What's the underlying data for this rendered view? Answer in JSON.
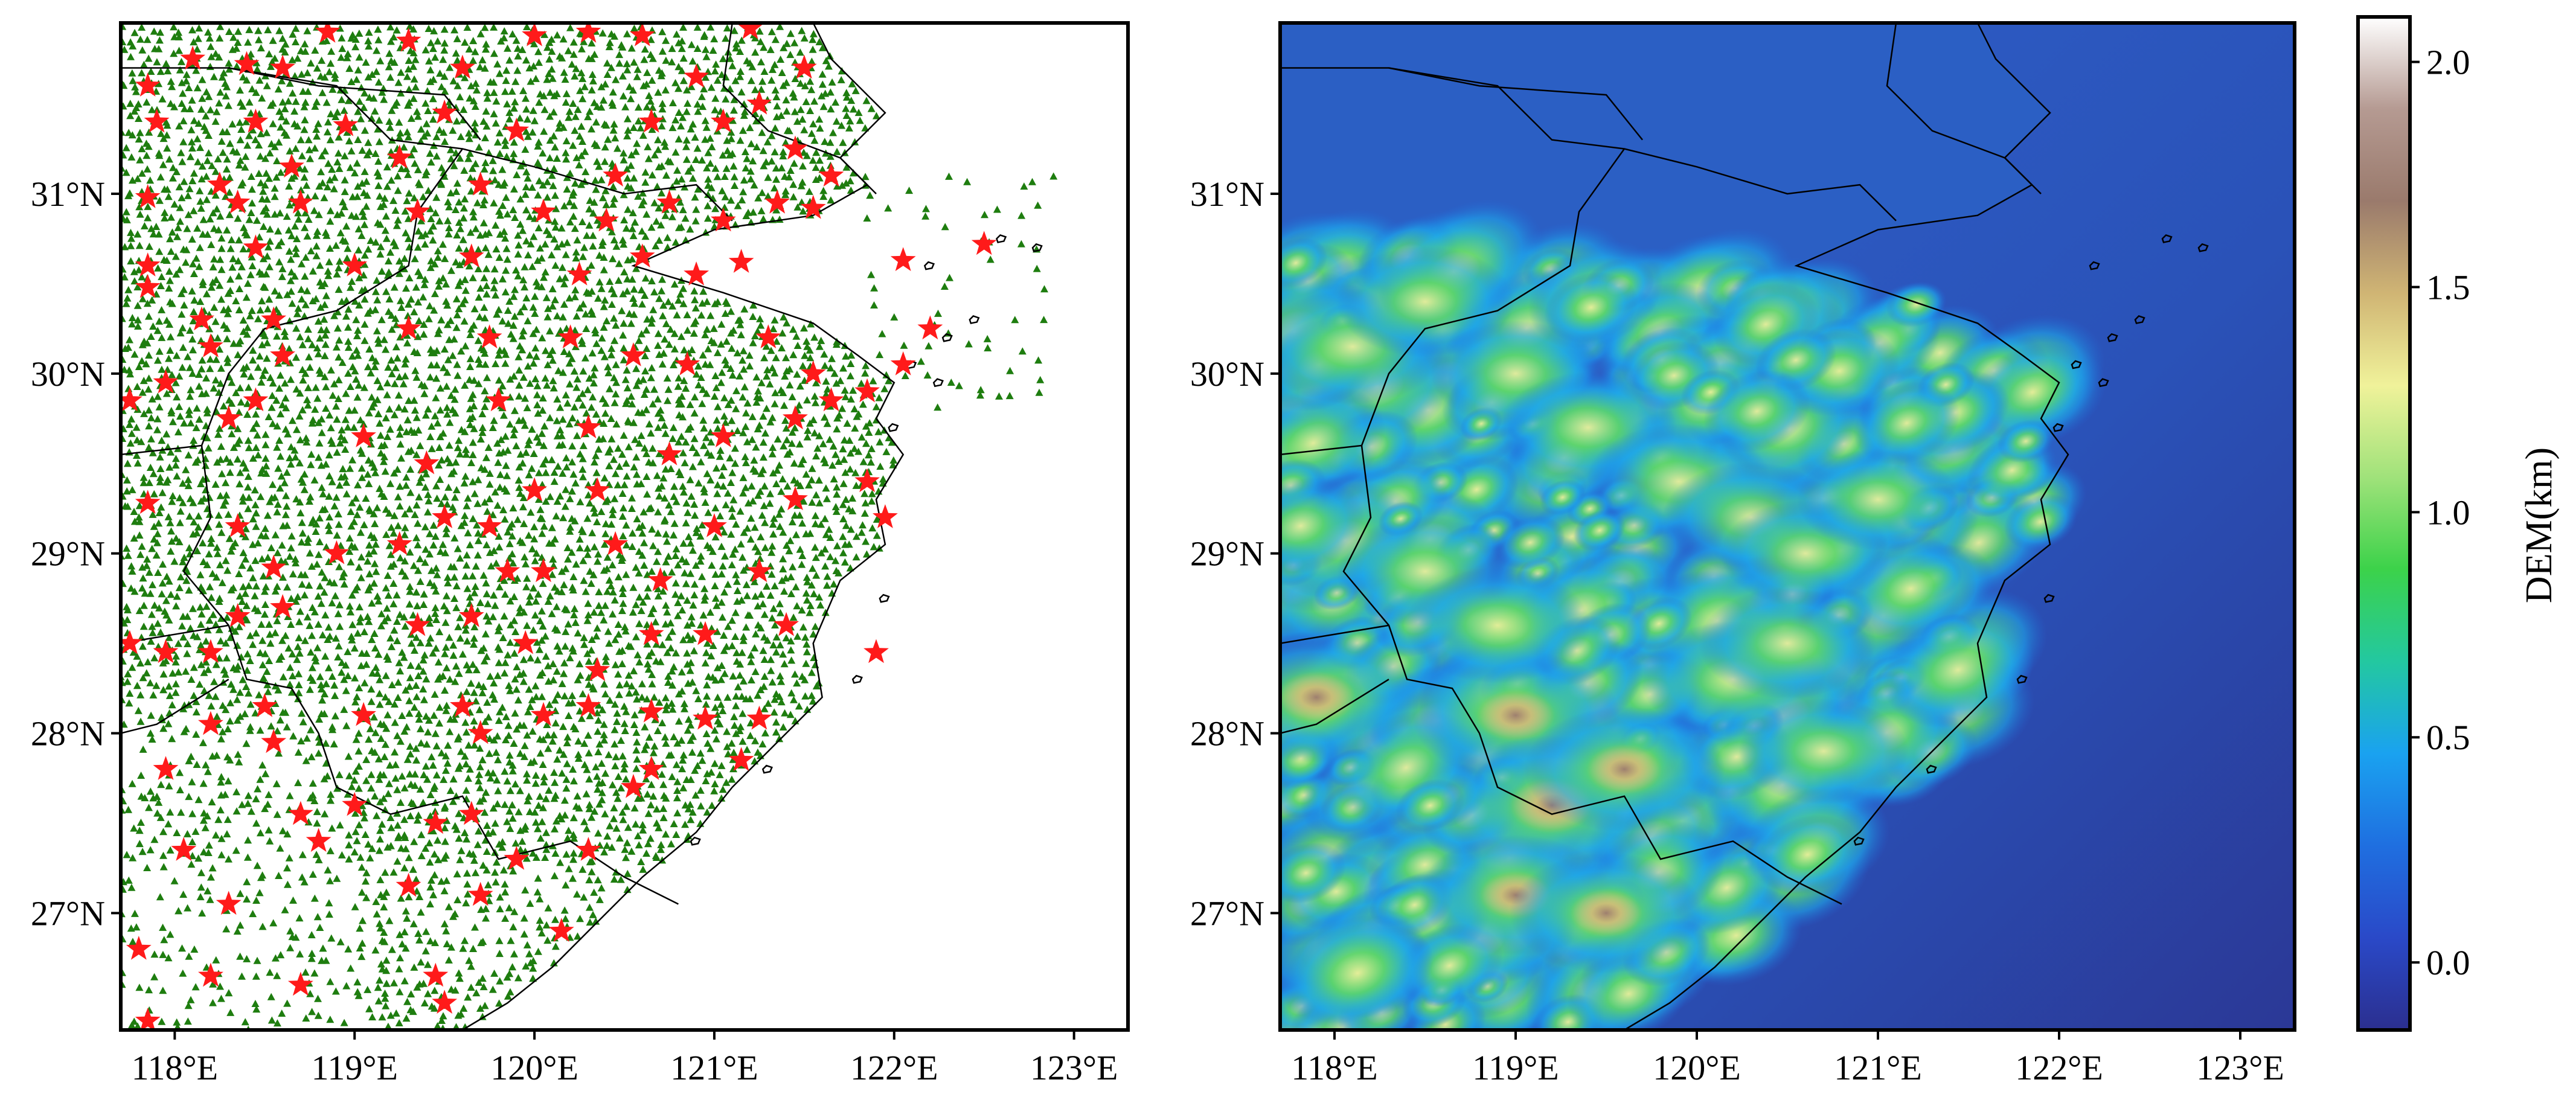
{
  "figure": {
    "panels": [
      {
        "id": "stations",
        "lon_range": [
          117.7,
          123.3
        ],
        "lat_range": [
          26.35,
          31.95
        ],
        "xticks": [
          118,
          119,
          120,
          121,
          122,
          123
        ],
        "xtick_labels": [
          "118°E",
          "119°E",
          "120°E",
          "121°E",
          "122°E",
          "123°E"
        ],
        "yticks": [
          27,
          28,
          29,
          30,
          31
        ],
        "ytick_labels": [
          "27°N",
          "28°N",
          "29°N",
          "30°N",
          "31°N"
        ],
        "markers": {
          "dense_station": {
            "shape": "triangle",
            "color": "#1e7d0f"
          },
          "reference_station": {
            "shape": "star",
            "color": "#ff1a1a"
          }
        }
      },
      {
        "id": "dem",
        "lon_range": [
          117.7,
          123.3
        ],
        "lat_range": [
          26.35,
          31.95
        ],
        "xticks": [
          118,
          119,
          120,
          121,
          122,
          123
        ],
        "xtick_labels": [
          "118°E",
          "119°E",
          "120°E",
          "121°E",
          "122°E",
          "123°E"
        ],
        "yticks": [
          27,
          28,
          29,
          30,
          31
        ],
        "ytick_labels": [
          "27°N",
          "28°N",
          "29°N",
          "30°N",
          "31°N"
        ]
      }
    ],
    "colorbar": {
      "label": "DEM(km)",
      "range": [
        -0.15,
        2.1
      ],
      "ticks": [
        0.0,
        0.5,
        1.0,
        1.5,
        2.0
      ],
      "tick_labels": [
        "0.0",
        "0.5",
        "1.0",
        "1.5",
        "2.0"
      ],
      "colors": [
        "#2b2f8f",
        "#2a49c8",
        "#1f6fe0",
        "#1aa2f0",
        "#23c8a0",
        "#3cd24a",
        "#9fe27a",
        "#f0f29a",
        "#d0b574",
        "#9a7a6c",
        "#b59a92",
        "#ffffff"
      ]
    },
    "land_color": "#2b5fc4",
    "border_color": "#000000"
  },
  "chart_data": [
    {
      "type": "scatter",
      "title": "",
      "xlabel": "",
      "ylabel": "",
      "xlim": [
        117.7,
        123.3
      ],
      "ylim": [
        26.35,
        31.95
      ],
      "series": [
        {
          "marker": "triangle",
          "color": "#1e7d0f",
          "description_count": "dense network of several thousand stations covering land area of Zhejiang province and surroundings"
        },
        {
          "marker": "star",
          "color": "#ff1a1a",
          "points": [
            [
              117.85,
              31.6
            ],
            [
              118.1,
              31.75
            ],
            [
              118.4,
              31.72
            ],
            [
              118.6,
              31.7
            ],
            [
              118.85,
              31.9
            ],
            [
              119.3,
              31.85
            ],
            [
              119.6,
              31.7
            ],
            [
              120.0,
              31.88
            ],
            [
              120.3,
              31.9
            ],
            [
              120.6,
              31.88
            ],
            [
              120.9,
              31.65
            ],
            [
              121.2,
              31.92
            ],
            [
              121.5,
              31.7
            ],
            [
              117.9,
              31.4
            ],
            [
              118.45,
              31.4
            ],
            [
              118.65,
              31.15
            ],
            [
              118.95,
              31.38
            ],
            [
              119.25,
              31.2
            ],
            [
              119.5,
              31.45
            ],
            [
              119.9,
              31.35
            ],
            [
              120.45,
              31.1
            ],
            [
              120.65,
              31.4
            ],
            [
              121.05,
              31.4
            ],
            [
              121.25,
              31.5
            ],
            [
              121.45,
              31.25
            ],
            [
              121.65,
              31.1
            ],
            [
              117.85,
              30.98
            ],
            [
              118.25,
              31.05
            ],
            [
              118.35,
              30.95
            ],
            [
              118.7,
              30.95
            ],
            [
              119.35,
              30.9
            ],
            [
              119.7,
              31.05
            ],
            [
              120.05,
              30.9
            ],
            [
              120.4,
              30.85
            ],
            [
              120.75,
              30.95
            ],
            [
              121.05,
              30.85
            ],
            [
              121.35,
              30.95
            ],
            [
              121.55,
              30.92
            ],
            [
              117.85,
              30.6
            ],
            [
              118.45,
              30.7
            ],
            [
              119.0,
              30.6
            ],
            [
              119.65,
              30.65
            ],
            [
              120.25,
              30.55
            ],
            [
              120.6,
              30.65
            ],
            [
              120.9,
              30.55
            ],
            [
              121.15,
              30.62
            ],
            [
              122.05,
              30.63
            ],
            [
              122.5,
              30.72
            ],
            [
              117.85,
              30.48
            ],
            [
              118.15,
              30.3
            ],
            [
              118.2,
              30.15
            ],
            [
              118.55,
              30.3
            ],
            [
              118.6,
              30.1
            ],
            [
              119.3,
              30.25
            ],
            [
              119.75,
              30.2
            ],
            [
              120.2,
              30.2
            ],
            [
              120.55,
              30.1
            ],
            [
              120.85,
              30.05
            ],
            [
              121.3,
              30.2
            ],
            [
              121.55,
              30.0
            ],
            [
              121.85,
              29.9
            ],
            [
              122.2,
              30.25
            ],
            [
              122.05,
              30.05
            ],
            [
              117.75,
              29.85
            ],
            [
              117.95,
              29.95
            ],
            [
              118.3,
              29.75
            ],
            [
              118.45,
              29.85
            ],
            [
              119.05,
              29.65
            ],
            [
              119.4,
              29.5
            ],
            [
              119.8,
              29.85
            ],
            [
              120.3,
              29.7
            ],
            [
              120.75,
              29.55
            ],
            [
              121.05,
              29.65
            ],
            [
              121.45,
              29.75
            ],
            [
              121.65,
              29.85
            ],
            [
              117.85,
              29.28
            ],
            [
              118.35,
              29.15
            ],
            [
              118.55,
              28.92
            ],
            [
              118.9,
              29.0
            ],
            [
              119.25,
              29.05
            ],
            [
              119.5,
              29.2
            ],
            [
              119.75,
              29.15
            ],
            [
              119.85,
              28.9
            ],
            [
              120.0,
              29.35
            ],
            [
              120.35,
              29.35
            ],
            [
              120.05,
              28.9
            ],
            [
              120.45,
              29.05
            ],
            [
              120.7,
              28.85
            ],
            [
              121.0,
              29.15
            ],
            [
              121.25,
              28.9
            ],
            [
              121.45,
              29.3
            ],
            [
              121.85,
              29.4
            ],
            [
              121.95,
              29.2
            ],
            [
              117.75,
              28.5
            ],
            [
              117.95,
              28.45
            ],
            [
              118.2,
              28.45
            ],
            [
              118.35,
              28.65
            ],
            [
              118.6,
              28.7
            ],
            [
              119.35,
              28.6
            ],
            [
              119.65,
              28.65
            ],
            [
              119.95,
              28.5
            ],
            [
              120.35,
              28.35
            ],
            [
              120.65,
              28.55
            ],
            [
              120.95,
              28.55
            ],
            [
              121.4,
              28.6
            ],
            [
              121.9,
              28.45
            ],
            [
              118.2,
              28.05
            ],
            [
              118.5,
              28.15
            ],
            [
              119.05,
              28.1
            ],
            [
              119.6,
              28.15
            ],
            [
              119.7,
              28.0
            ],
            [
              120.05,
              28.1
            ],
            [
              120.3,
              28.15
            ],
            [
              120.65,
              28.12
            ],
            [
              120.95,
              28.08
            ],
            [
              121.25,
              28.08
            ],
            [
              121.15,
              27.85
            ],
            [
              118.55,
              27.95
            ],
            [
              117.95,
              27.8
            ],
            [
              118.7,
              27.55
            ],
            [
              119.0,
              27.6
            ],
            [
              119.45,
              27.5
            ],
            [
              119.65,
              27.55
            ],
            [
              119.9,
              27.3
            ],
            [
              120.3,
              27.35
            ],
            [
              120.55,
              27.7
            ],
            [
              120.65,
              27.8
            ],
            [
              118.05,
              27.35
            ],
            [
              118.8,
              27.4
            ],
            [
              119.3,
              27.15
            ],
            [
              119.7,
              27.1
            ],
            [
              118.3,
              27.05
            ],
            [
              120.15,
              26.9
            ],
            [
              117.8,
              26.8
            ],
            [
              118.2,
              26.65
            ],
            [
              118.7,
              26.6
            ],
            [
              119.45,
              26.65
            ],
            [
              119.5,
              26.5
            ],
            [
              117.85,
              26.4
            ]
          ]
        }
      ]
    },
    {
      "type": "heatmap",
      "title": "",
      "xlabel": "",
      "ylabel": "",
      "xlim": [
        117.7,
        123.3
      ],
      "ylim": [
        26.35,
        31.95
      ],
      "colorbar_label": "DEM(km)",
      "value_range": [
        -0.15,
        2.1
      ],
      "ridges": [
        [
          118.1,
          30.15,
          0.9
        ],
        [
          118.5,
          30.4,
          0.8
        ],
        [
          119.0,
          30.0,
          0.7
        ],
        [
          119.4,
          29.7,
          0.8
        ],
        [
          119.9,
          29.4,
          0.9
        ],
        [
          120.3,
          29.2,
          0.8
        ],
        [
          120.6,
          29.0,
          0.7
        ],
        [
          121.0,
          29.3,
          0.6
        ],
        [
          119.0,
          28.1,
          1.2
        ],
        [
          119.2,
          27.6,
          1.4
        ],
        [
          119.6,
          27.8,
          1.1
        ],
        [
          119.0,
          27.1,
          1.0
        ],
        [
          119.5,
          27.0,
          1.0
        ],
        [
          120.2,
          28.3,
          0.9
        ],
        [
          120.5,
          28.5,
          0.8
        ],
        [
          118.5,
          28.9,
          0.8
        ],
        [
          118.9,
          28.6,
          0.9
        ],
        [
          117.9,
          28.2,
          1.2
        ],
        [
          120.7,
          27.9,
          0.7
        ]
      ]
    }
  ]
}
